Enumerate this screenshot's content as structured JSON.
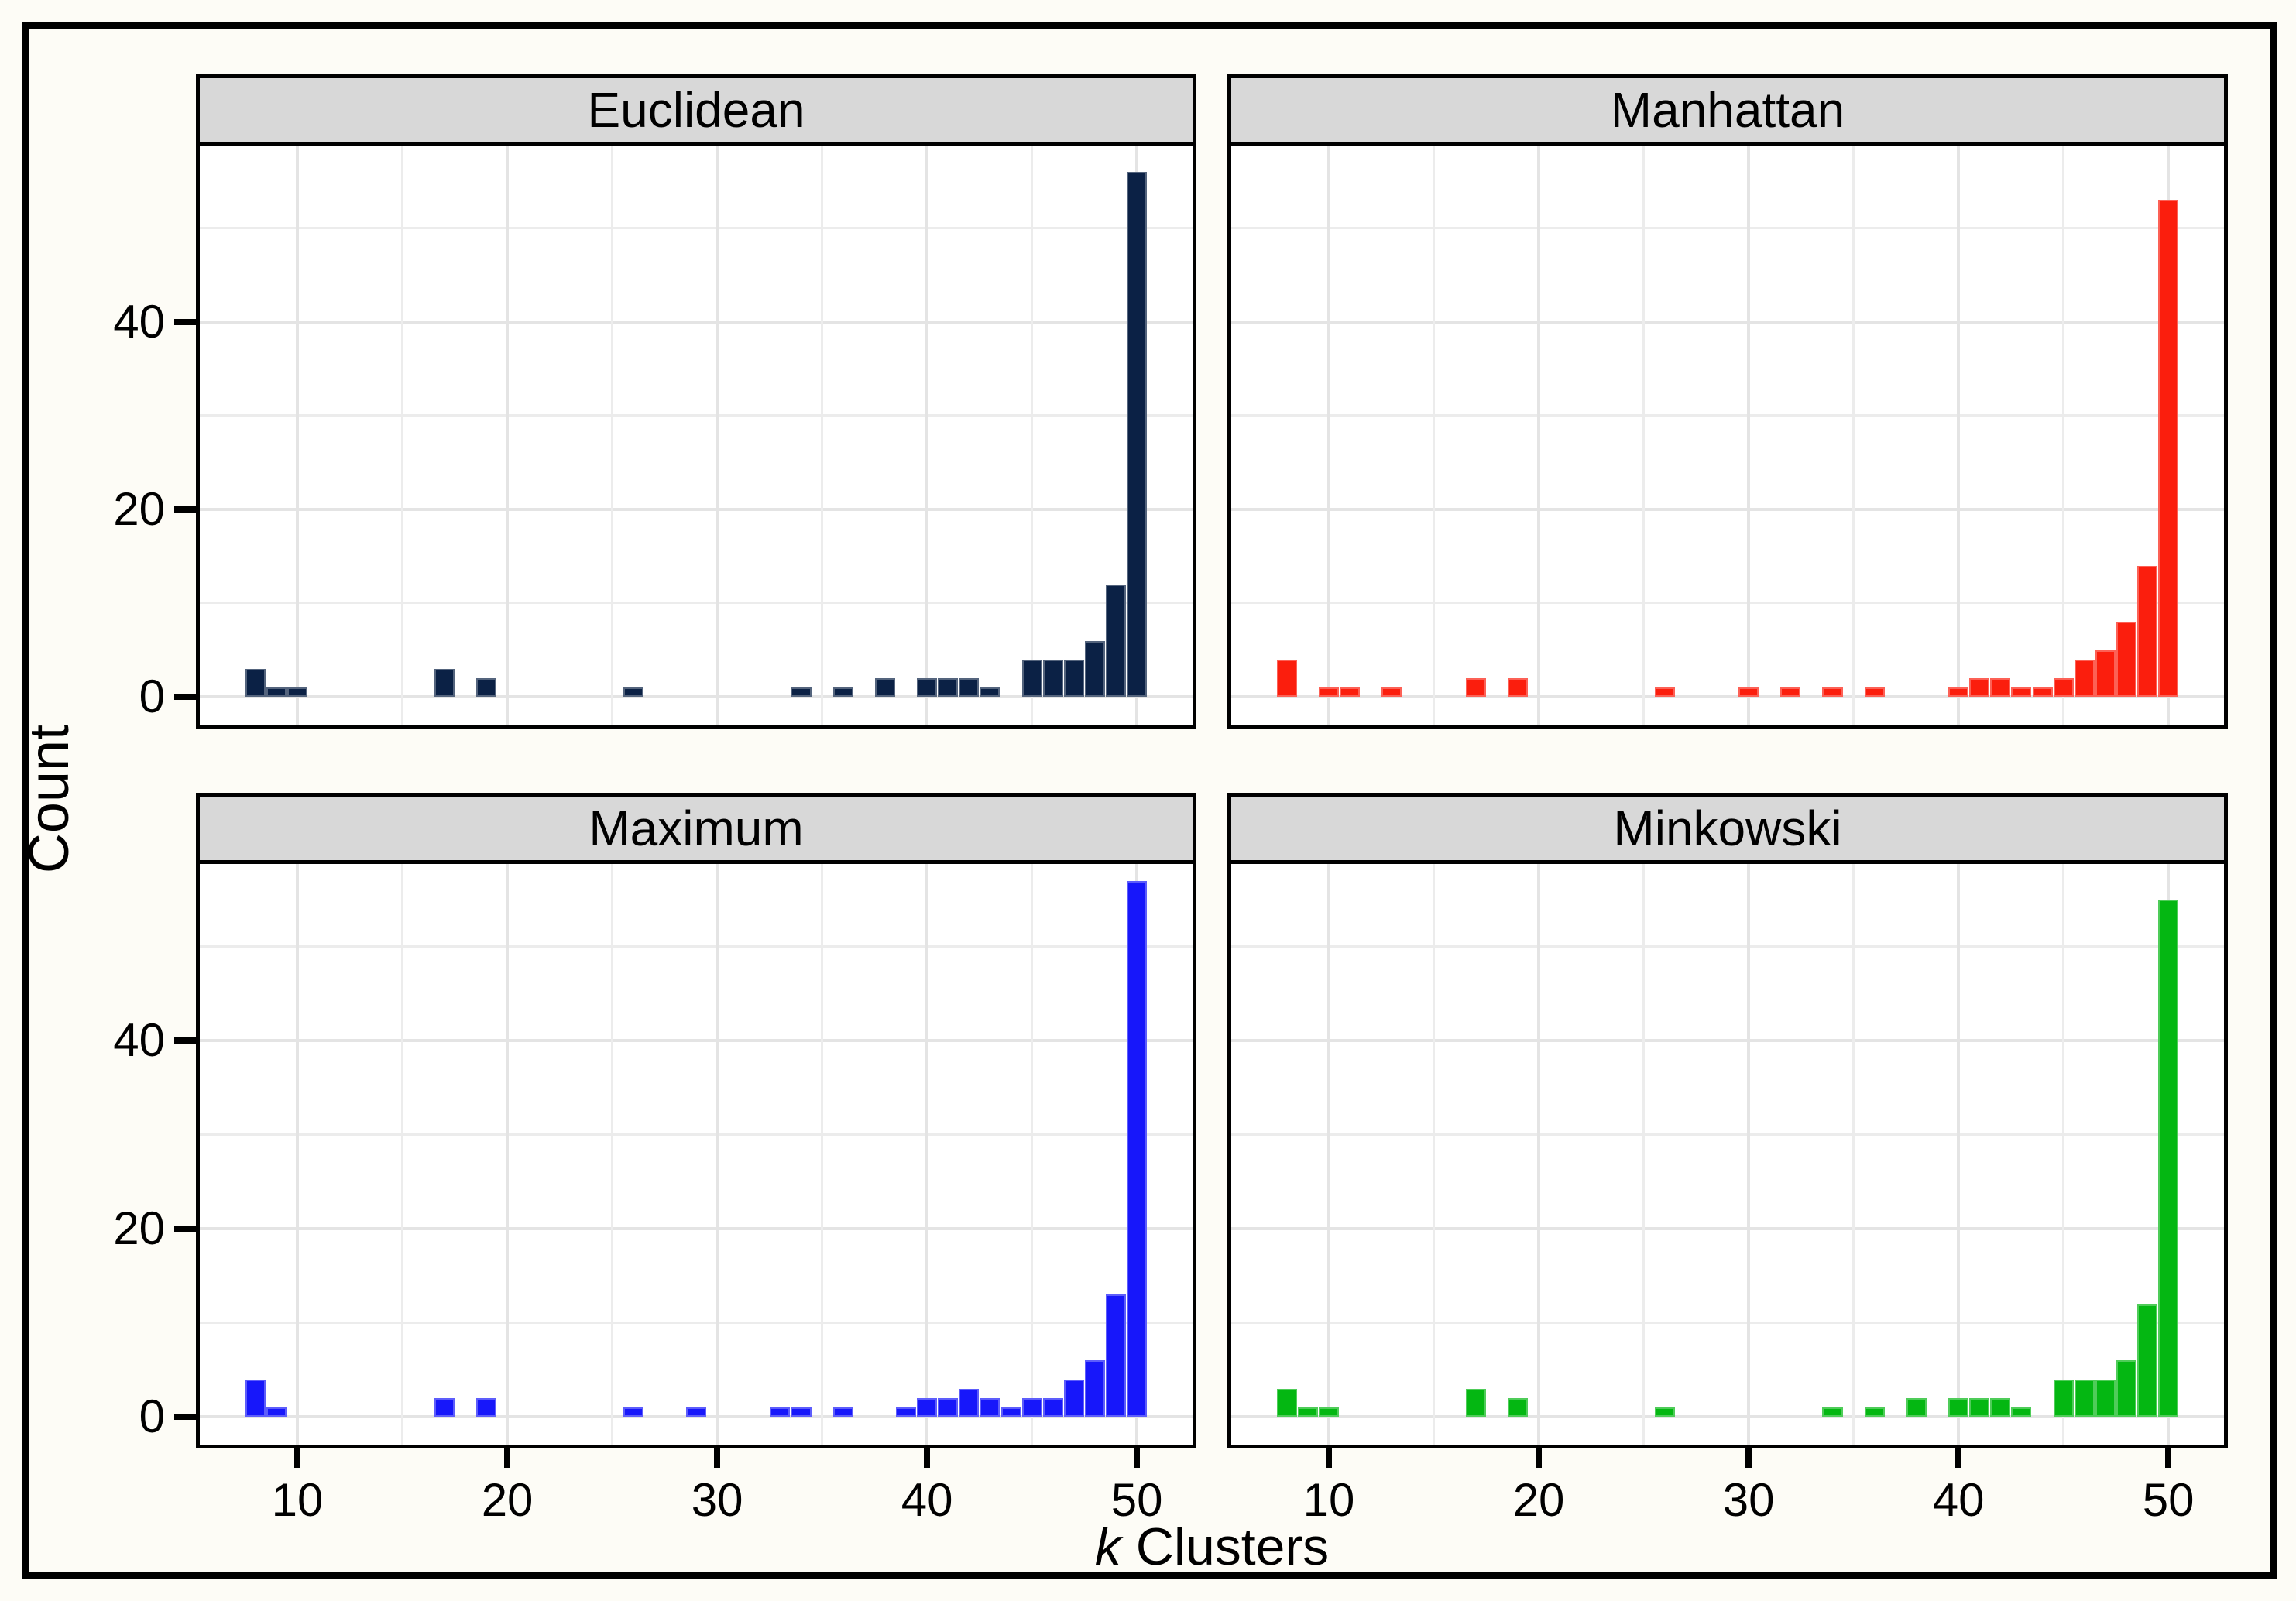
{
  "figure": {
    "background": "#fdfcf6",
    "border_color": "#000000",
    "header_fill": "#d8d8d8",
    "gridline_major_color": "#e4e4e4",
    "gridline_minor_color": "#ececec"
  },
  "axes": {
    "y_label": "Count",
    "x_label_var": "k",
    "x_label_rest": " Clusters"
  },
  "chart_data": {
    "type": "bar",
    "subtype": "faceted-histogram",
    "title": "",
    "xlabel": "k Clusters",
    "ylabel": "Count",
    "layout": "2x2 facet grid, shared axes",
    "grid": true,
    "binwidth": 1,
    "xlim": [
      5.35,
      52.65
    ],
    "ylim": [
      -2.94,
      58.8
    ],
    "x_ticks": [
      10,
      20,
      30,
      40,
      50
    ],
    "x_minor": [
      15,
      25,
      35,
      45
    ],
    "y_ticks": [
      0,
      20,
      40
    ],
    "y_minor": [
      10,
      30,
      50
    ],
    "facets": [
      {
        "label": "Euclidean",
        "color": "#0b2145",
        "bins": {
          "8": 3,
          "9": 1,
          "10": 1,
          "17": 3,
          "19": 2,
          "26": 1,
          "34": 1,
          "36": 1,
          "38": 2,
          "40": 2,
          "41": 2,
          "42": 2,
          "43": 1,
          "45": 4,
          "46": 4,
          "47": 4,
          "48": 6,
          "49": 12,
          "50": 56
        }
      },
      {
        "label": "Manhattan",
        "color": "#fb1e0d",
        "bins": {
          "8": 4,
          "10": 1,
          "11": 1,
          "13": 1,
          "17": 2,
          "19": 2,
          "26": 1,
          "30": 1,
          "32": 1,
          "34": 1,
          "36": 1,
          "40": 1,
          "41": 2,
          "42": 2,
          "43": 1,
          "44": 1,
          "45": 2,
          "46": 4,
          "47": 5,
          "48": 8,
          "49": 14,
          "50": 53
        }
      },
      {
        "label": "Maximum",
        "color": "#1717fa",
        "bins": {
          "8": 4,
          "9": 1,
          "17": 2,
          "19": 2,
          "26": 1,
          "29": 1,
          "33": 1,
          "34": 1,
          "36": 1,
          "39": 1,
          "40": 2,
          "41": 2,
          "42": 3,
          "43": 2,
          "44": 1,
          "45": 2,
          "46": 2,
          "47": 4,
          "48": 6,
          "49": 13,
          "50": 57
        }
      },
      {
        "label": "Minkowski",
        "color": "#04b712",
        "bins": {
          "8": 3,
          "9": 1,
          "10": 1,
          "17": 3,
          "19": 2,
          "26": 1,
          "34": 1,
          "36": 1,
          "38": 2,
          "40": 2,
          "41": 2,
          "42": 2,
          "43": 1,
          "45": 4,
          "46": 4,
          "47": 4,
          "48": 6,
          "49": 12,
          "50": 55
        }
      }
    ]
  }
}
